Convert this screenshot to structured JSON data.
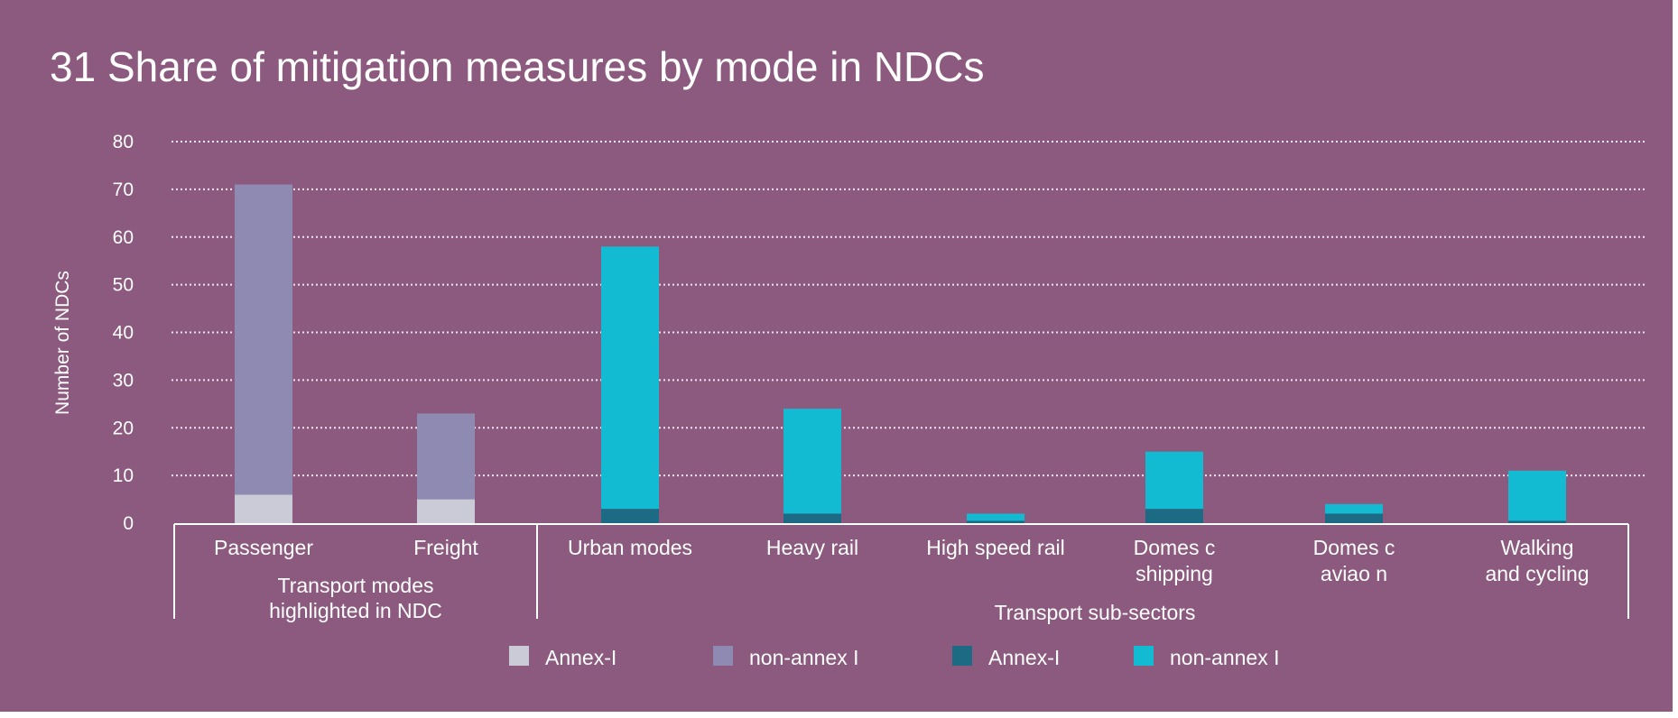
{
  "chart_data": {
    "type": "bar",
    "stacked": true,
    "title": "31 Share of mitigation measures by mode in NDCs",
    "ylabel": "Number of NDCs",
    "ylim": [
      0,
      80
    ],
    "yticks": [
      "0",
      "10",
      "20",
      "30",
      "40",
      "50",
      "60",
      "70",
      "80"
    ],
    "grid": true,
    "categories": [
      [
        "Passenger"
      ],
      [
        "Freight"
      ],
      [
        "Urban modes"
      ],
      [
        "Heavy rail"
      ],
      [
        "High speed rail"
      ],
      [
        "Domes c",
        "shipping"
      ],
      [
        "Domes c",
        "aviao n"
      ],
      [
        "Walking",
        "and cycling"
      ]
    ],
    "groups": [
      {
        "label": [
          "Transport modes",
          "highlighted in NDC"
        ],
        "categories": [
          0,
          1
        ]
      },
      {
        "label": [
          "Transport sub-sectors"
        ],
        "categories": [
          2,
          3,
          4,
          5,
          6,
          7
        ]
      }
    ],
    "series": [
      {
        "name": "Annex-I",
        "color": "#cbcbd8",
        "values": [
          6,
          5,
          null,
          null,
          null,
          null,
          null,
          null
        ]
      },
      {
        "name": "non-annex I",
        "color": "#8f8ab2",
        "values": [
          65,
          18,
          null,
          null,
          null,
          null,
          null,
          null
        ]
      },
      {
        "name": "Annex-I",
        "color": "#1d6a84",
        "values": [
          null,
          null,
          3,
          2,
          0.5,
          3,
          2,
          0.5
        ]
      },
      {
        "name": "non-annex I",
        "color": "#12bad2",
        "values": [
          null,
          null,
          55,
          22,
          1.5,
          12,
          2,
          10.5
        ]
      }
    ],
    "legend": {
      "placement": "bottom",
      "entries": [
        0,
        1,
        2,
        3
      ]
    }
  }
}
